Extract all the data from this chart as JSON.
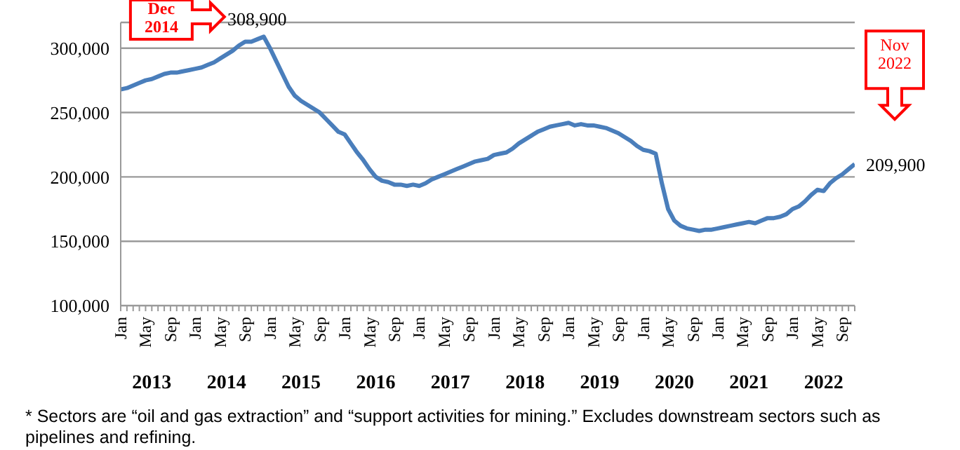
{
  "chart_data": {
    "type": "line",
    "categories": [
      "Jan",
      null,
      null,
      null,
      "May",
      null,
      null,
      null,
      "Sep",
      null,
      null,
      null,
      "Jan",
      null,
      null,
      null,
      "May",
      null,
      null,
      null,
      "Sep",
      null,
      null,
      null,
      "Jan",
      null,
      null,
      null,
      "May",
      null,
      null,
      null,
      "Sep",
      null,
      null,
      null,
      "Jan",
      null,
      null,
      null,
      "May",
      null,
      null,
      null,
      "Sep",
      null,
      null,
      null,
      "Jan",
      null,
      null,
      null,
      "May",
      null,
      null,
      null,
      "Sep",
      null,
      null,
      null,
      "Jan",
      null,
      null,
      null,
      "May",
      null,
      null,
      null,
      "Sep",
      null,
      null,
      null,
      "Jan",
      null,
      null,
      null,
      "May",
      null,
      null,
      null,
      "Sep",
      null,
      null,
      null,
      "Jan",
      null,
      null,
      null,
      "May",
      null,
      null,
      null,
      "Sep",
      null,
      null,
      null,
      "Jan",
      null,
      null,
      null,
      "May",
      null,
      null,
      null,
      "Sep",
      null,
      null,
      null,
      "Jan",
      null,
      null,
      null,
      "May",
      null,
      null,
      null,
      "Sep",
      null,
      null
    ],
    "series": [
      {
        "color": "#4a7ebb",
        "values": [
          268000,
          269000,
          271000,
          273000,
          275000,
          276000,
          278000,
          280000,
          281000,
          281000,
          282000,
          283000,
          284000,
          285000,
          287000,
          289000,
          292000,
          295000,
          298000,
          302000,
          305000,
          305000,
          307000,
          308900,
          300000,
          290000,
          280000,
          270000,
          263000,
          259000,
          256000,
          253000,
          250000,
          245000,
          240000,
          235000,
          233000,
          226000,
          219000,
          213000,
          206000,
          200000,
          197000,
          196000,
          194000,
          194000,
          193000,
          194000,
          193000,
          195000,
          198000,
          200000,
          202000,
          204000,
          206000,
          208000,
          210000,
          212000,
          213000,
          214000,
          217000,
          218000,
          219000,
          222000,
          226000,
          229000,
          232000,
          235000,
          237000,
          239000,
          240000,
          241000,
          242000,
          240000,
          241000,
          240000,
          240000,
          239000,
          238000,
          236000,
          234000,
          231000,
          228000,
          224000,
          221000,
          220000,
          218000,
          195000,
          175000,
          166000,
          162000,
          160000,
          159000,
          158000,
          159000,
          159000,
          160000,
          161000,
          162000,
          163000,
          164000,
          165000,
          164000,
          166000,
          168000,
          168000,
          169000,
          171000,
          175000,
          177000,
          181000,
          186000,
          190000,
          189000,
          195000,
          199000,
          202000,
          206000,
          209900
        ],
        "value_labels": [
          null,
          null,
          null,
          null,
          null,
          null,
          null,
          null,
          null,
          null,
          null,
          null,
          null,
          null,
          null,
          null,
          null,
          null,
          null,
          null,
          null,
          null,
          null,
          "308,900",
          null,
          null,
          null,
          null,
          null,
          null,
          null,
          null,
          null,
          null,
          null,
          null,
          null,
          null,
          null,
          null,
          null,
          null,
          null,
          null,
          null,
          null,
          null,
          null,
          null,
          null,
          null,
          null,
          null,
          null,
          null,
          null,
          null,
          null,
          null,
          null,
          null,
          null,
          null,
          null,
          null,
          null,
          null,
          null,
          null,
          null,
          null,
          null,
          null,
          null,
          null,
          null,
          null,
          null,
          null,
          null,
          null,
          null,
          null,
          null,
          null,
          null,
          null,
          null,
          null,
          null,
          null,
          null,
          null,
          null,
          null,
          null,
          null,
          null,
          null,
          null,
          null,
          null,
          null,
          null,
          null,
          null,
          null,
          null,
          null,
          null,
          null,
          null,
          null,
          null,
          null,
          null,
          null,
          null,
          "209,900"
        ]
      }
    ],
    "ylim": [
      100000,
      320000
    ],
    "yticks": [
      {
        "value": 100000,
        "label": "100,000"
      },
      {
        "value": 150000,
        "label": "150,000"
      },
      {
        "value": 200000,
        "label": "200,000"
      },
      {
        "value": 250000,
        "label": "250,000"
      },
      {
        "value": 300000,
        "label": "300,000"
      }
    ],
    "grid": "y",
    "legend": false,
    "marker": "none",
    "line_style": "solid",
    "annotations": [
      "Dec 2014",
      "Nov 2022",
      "2013",
      "2014",
      "2015",
      "2016",
      "2017",
      "2018",
      "2019",
      "2020",
      "2021",
      "2022",
      "* Sectors are “oil and gas extraction” and “support activities for mining.” Excludes downstream sectors such as pipelines and refining."
    ]
  }
}
